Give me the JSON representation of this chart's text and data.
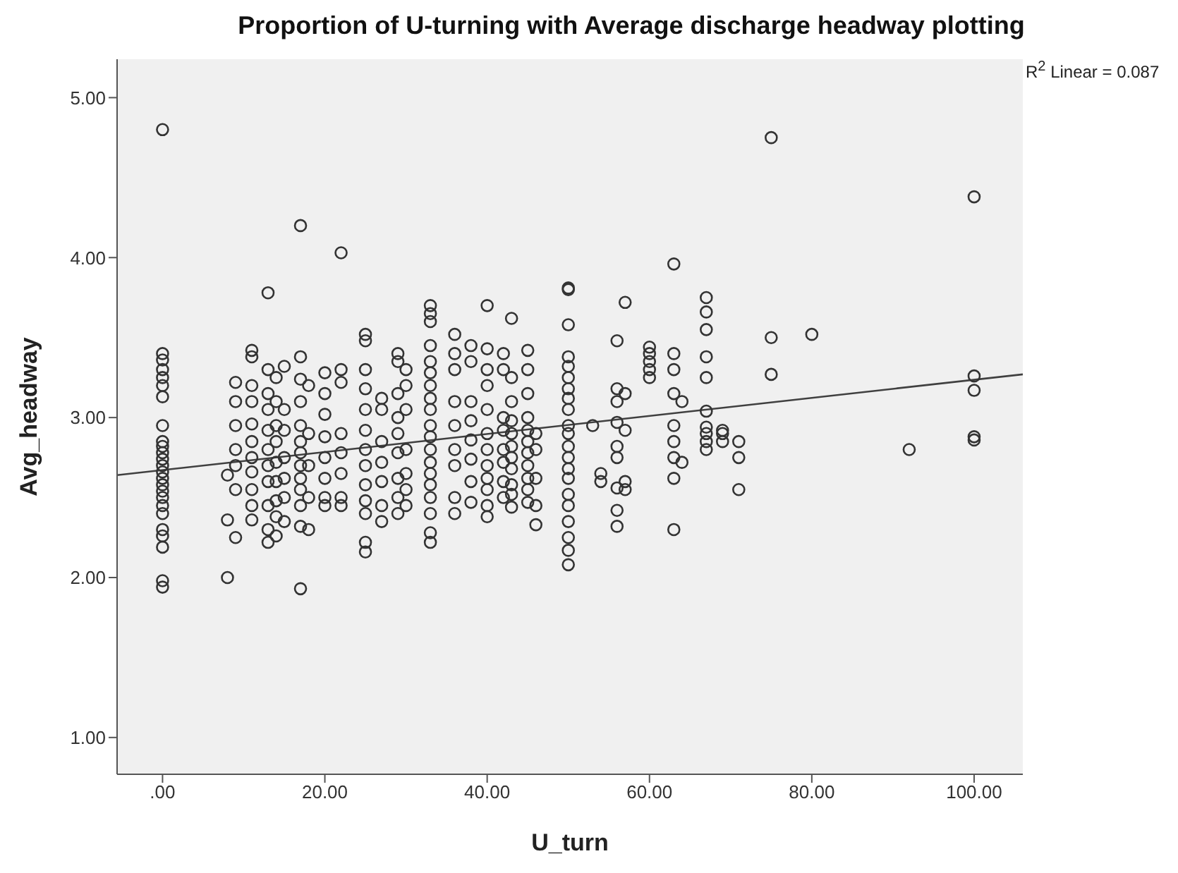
{
  "chart_data": {
    "type": "scatter",
    "title": "Proportion of U-turning with Average discharge headway plotting",
    "xlabel": "U_turn",
    "ylabel": "Avg_headway",
    "annotations": [
      "R$^{2}$ Linear = 0.087"
    ],
    "xlim": [
      -5.6,
      106
    ],
    "ylim": [
      0.77,
      5.24
    ],
    "xticks": [
      {
        "value": 0,
        "label": ".00"
      },
      {
        "value": 20,
        "label": "20.00"
      },
      {
        "value": 40,
        "label": "40.00"
      },
      {
        "value": 60,
        "label": "60.00"
      },
      {
        "value": 80,
        "label": "80.00"
      },
      {
        "value": 100,
        "label": "100.00"
      }
    ],
    "yticks": [
      {
        "value": 1,
        "label": "1.00"
      },
      {
        "value": 2,
        "label": "2.00"
      },
      {
        "value": 3,
        "label": "3.00"
      },
      {
        "value": 4,
        "label": "4.00"
      },
      {
        "value": 5,
        "label": "5.00"
      }
    ],
    "series": [
      {
        "marker": "circle",
        "color": "#333333",
        "x": [
          0,
          0,
          0,
          0,
          0,
          0,
          0,
          0,
          0,
          0,
          0,
          0,
          0,
          0,
          0,
          0,
          0,
          0,
          0,
          0,
          0,
          0,
          0,
          0,
          0,
          8,
          8,
          8,
          9,
          9,
          9,
          9,
          9,
          9,
          9,
          11,
          11,
          11,
          11,
          11,
          11,
          11,
          11,
          11,
          11,
          11,
          13,
          13,
          13,
          13,
          13,
          13,
          13,
          13,
          13,
          13,
          13,
          14,
          14,
          14,
          14,
          14,
          14,
          14,
          14,
          14,
          15,
          15,
          15,
          15,
          15,
          15,
          15,
          17,
          17,
          17,
          17,
          17,
          17,
          17,
          17,
          17,
          17,
          17,
          17,
          17,
          18,
          18,
          18,
          18,
          18,
          20,
          20,
          20,
          20,
          20,
          20,
          20,
          20,
          22,
          22,
          22,
          22,
          22,
          22,
          22,
          22,
          25,
          25,
          25,
          25,
          25,
          25,
          25,
          25,
          25,
          25,
          25,
          25,
          25,
          27,
          27,
          27,
          27,
          27,
          27,
          27,
          29,
          29,
          29,
          29,
          29,
          29,
          29,
          29,
          29,
          30,
          30,
          30,
          30,
          30,
          30,
          30,
          33,
          33,
          33,
          33,
          33,
          33,
          33,
          33,
          33,
          33,
          33,
          33,
          33,
          33,
          33,
          33,
          33,
          33,
          33,
          36,
          36,
          36,
          36,
          36,
          36,
          36,
          36,
          36,
          38,
          38,
          38,
          38,
          38,
          38,
          38,
          38,
          40,
          40,
          40,
          40,
          40,
          40,
          40,
          40,
          40,
          40,
          40,
          40,
          42,
          42,
          42,
          42,
          42,
          42,
          42,
          42,
          43,
          43,
          43,
          43,
          43,
          43,
          43,
          43,
          43,
          43,
          43,
          45,
          45,
          45,
          45,
          45,
          45,
          45,
          45,
          45,
          45,
          45,
          46,
          46,
          46,
          46,
          46,
          50,
          50,
          50,
          50,
          50,
          50,
          50,
          50,
          50,
          50,
          50,
          50,
          50,
          50,
          50,
          50,
          50,
          50,
          50,
          50,
          50,
          53,
          54,
          54,
          56,
          56,
          56,
          56,
          56,
          56,
          56,
          56,
          56,
          57,
          57,
          57,
          57,
          57,
          60,
          60,
          60,
          60,
          60,
          63,
          63,
          63,
          63,
          63,
          63,
          63,
          63,
          63,
          64,
          64,
          67,
          67,
          67,
          67,
          67,
          67,
          67,
          67,
          67,
          67,
          69,
          69,
          69,
          71,
          71,
          71,
          75,
          75,
          75,
          80,
          92,
          100,
          100,
          100,
          100,
          100
        ],
        "values": [
          4.8,
          3.4,
          3.36,
          3.3,
          3.25,
          3.2,
          3.13,
          2.95,
          2.85,
          2.82,
          2.78,
          2.74,
          2.7,
          2.66,
          2.62,
          2.58,
          2.54,
          2.5,
          2.45,
          2.4,
          2.3,
          2.26,
          2.19,
          1.98,
          1.94,
          2.64,
          2.36,
          2.0,
          3.22,
          3.1,
          2.95,
          2.8,
          2.7,
          2.55,
          2.25,
          3.42,
          3.38,
          3.2,
          3.1,
          2.96,
          2.85,
          2.75,
          2.66,
          2.55,
          2.45,
          2.36,
          3.78,
          3.3,
          3.15,
          3.05,
          2.92,
          2.8,
          2.7,
          2.6,
          2.45,
          2.3,
          2.22,
          3.25,
          3.1,
          2.95,
          2.85,
          2.72,
          2.6,
          2.48,
          2.38,
          2.26,
          3.32,
          3.05,
          2.92,
          2.75,
          2.62,
          2.5,
          2.35,
          4.2,
          3.38,
          3.24,
          3.1,
          2.95,
          2.85,
          2.78,
          2.7,
          2.62,
          2.55,
          2.45,
          2.32,
          1.93,
          3.2,
          2.9,
          2.7,
          2.5,
          2.3,
          3.28,
          3.15,
          3.02,
          2.88,
          2.75,
          2.62,
          2.5,
          2.45,
          4.03,
          3.3,
          3.22,
          2.9,
          2.78,
          2.65,
          2.5,
          2.45,
          3.52,
          3.48,
          3.3,
          3.18,
          3.05,
          2.92,
          2.8,
          2.7,
          2.58,
          2.48,
          2.4,
          2.22,
          2.16,
          3.12,
          3.05,
          2.85,
          2.72,
          2.6,
          2.45,
          2.35,
          3.4,
          3.35,
          3.15,
          3.0,
          2.9,
          2.78,
          2.62,
          2.5,
          2.4,
          3.3,
          3.2,
          3.05,
          2.8,
          2.65,
          2.55,
          2.45,
          3.7,
          3.65,
          3.6,
          3.45,
          3.35,
          3.28,
          3.2,
          3.12,
          3.05,
          2.95,
          2.88,
          2.8,
          2.72,
          2.65,
          2.58,
          2.5,
          2.4,
          2.28,
          2.22,
          3.52,
          3.4,
          3.3,
          3.1,
          2.95,
          2.8,
          2.7,
          2.5,
          2.4,
          3.45,
          3.35,
          3.1,
          2.98,
          2.86,
          2.74,
          2.6,
          2.47,
          3.7,
          3.43,
          3.3,
          3.2,
          3.05,
          2.9,
          2.8,
          2.7,
          2.62,
          2.55,
          2.45,
          2.38,
          3.4,
          3.3,
          3.0,
          2.92,
          2.8,
          2.72,
          2.6,
          2.5,
          3.62,
          3.25,
          3.1,
          2.98,
          2.9,
          2.82,
          2.75,
          2.68,
          2.58,
          2.52,
          2.44,
          3.42,
          3.3,
          3.15,
          3.0,
          2.92,
          2.85,
          2.78,
          2.7,
          2.62,
          2.55,
          2.47,
          2.9,
          2.8,
          2.62,
          2.45,
          2.33,
          3.81,
          3.8,
          3.58,
          3.38,
          3.32,
          3.25,
          3.18,
          3.12,
          3.05,
          2.95,
          2.9,
          2.82,
          2.75,
          2.68,
          2.62,
          2.52,
          2.45,
          2.35,
          2.25,
          2.17,
          2.08,
          2.95,
          2.65,
          2.6,
          3.48,
          3.18,
          3.1,
          2.97,
          2.82,
          2.75,
          2.56,
          2.42,
          2.32,
          3.72,
          3.15,
          2.92,
          2.6,
          2.55,
          3.44,
          3.4,
          3.35,
          3.3,
          3.25,
          3.96,
          3.4,
          3.3,
          3.15,
          2.95,
          2.85,
          2.75,
          2.62,
          2.3,
          3.1,
          2.72,
          3.75,
          3.66,
          3.55,
          3.38,
          3.25,
          3.04,
          2.94,
          2.9,
          2.85,
          2.8,
          2.9,
          2.92,
          2.85,
          2.85,
          2.75,
          2.55,
          4.75,
          3.5,
          3.27,
          3.52,
          2.8,
          4.38,
          3.26,
          3.17,
          2.88,
          2.86
        ]
      },
      {
        "type": "line",
        "color": "#404040",
        "x": [
          -5.6,
          106
        ],
        "values": [
          2.64,
          3.27
        ]
      }
    ]
  }
}
